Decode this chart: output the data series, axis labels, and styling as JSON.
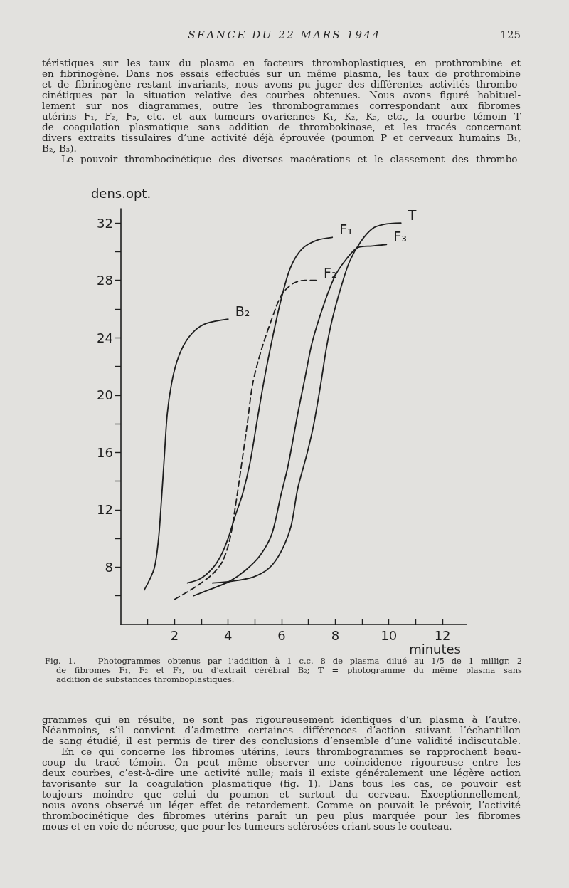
{
  "chart_data": {
    "type": "line",
    "xlabel": "minutes",
    "ylabel": "dens.opt.",
    "annotations": [
      "SEANCE DU 22 MARS 1944",
      "125",
      "téristiques sur les taux du plasma en facteurs thromboplastiques, en prothrombine et\nen fibrinogène. Dans nos essais effectués sur un même plasma, les taux de prothrombine\net de fibrinogène restant invariants, nous avons pu juger des différentes activités thrombo-\ncinétiques par la situation relative des courbes obtenues. Nous avons figuré habituel-\nlement sur nos diagrammes, outre les thrombogrammes correspondant aux fibromes\nutérins F₁, F₂, F₃, etc. et aux tumeurs ovariennes K₁, K₂, K₃, etc., la courbe témoin T\nde coagulation plasmatique sans addition de thrombokinase, et les tracés concernant\ndivers extraits tissulaires d’une activité déjà éprouvée (poumon P et cerveaux humains B₁,\nB₂, B₃).",
      "Le pouvoir thrombocinétique des diverses macérations et le classement des thrombo-",
      "Fig. 1. — Photogrammes obtenus par l’addition à 1 c.c. 8 de plasma dilué au 1/5 de 1 milligr. 2\nde fibromes F₁, F₂ et F₃, ou d’extrait cérébral B₂; T = photogramme du même plasma sans\naddition de substances thromboplastiques.",
      "grammes qui en résulte, ne sont pas rigoureusement identiques d’un plasma à l’autre.\nNéanmoins, s’il convient d’admettre certaines différences d’action suivant l’échantillon\nde sang étudié, il est permis de tirer des conclusions d’ensemble d’une validité indiscutable.",
      "En ce qui concerne les fibromes utérins, leurs thrombogrammes se rapprochent beau-\ncoup du tracé témoin. On peut même observer une coïncidence rigoureuse entre les\ndeux courbes, c’est-à-dire une activité nulle; mais il existe généralement une légère action\nfavorisante sur la coagulation plasmatique (fig. 1). Dans tous les cas, ce pouvoir est\ntoujours moindre que celui du poumon et surtout du cerveau. Exceptionnellement,\nnous avons observé un léger effet de retardement. Comme on pouvait le prévoir, l’activité\nthrombocinétique des fibromes utérins paraît un peu plus marquée pour les fibromes\nmous et en voie de nécrose, que pour les tumeurs sclérosées criant sous le couteau."
    ],
    "xlim": [
      0,
      12.9
    ],
    "ylim": [
      4,
      33
    ],
    "xticks": [
      {
        "value": 1,
        "label": null
      },
      2,
      {
        "value": 3,
        "label": null
      },
      4,
      {
        "value": 5,
        "label": null
      },
      6,
      {
        "value": 7,
        "label": null
      },
      8,
      {
        "value": 9,
        "label": null
      },
      10,
      {
        "value": 11,
        "label": null
      },
      12
    ],
    "yticks": [
      {
        "value": 6,
        "label": null
      },
      8,
      {
        "value": 10,
        "label": null
      },
      12,
      {
        "value": 14,
        "label": null
      },
      16,
      {
        "value": 18,
        "label": null
      },
      20,
      {
        "value": 22,
        "label": null
      },
      24,
      {
        "value": 26,
        "label": null
      },
      28,
      {
        "value": 30,
        "label": null
      },
      32
    ],
    "marker": "none",
    "line_style": "solid",
    "series": [
      {
        "name": "B₂",
        "color": "#1e1e1e",
        "x": [
          0.87,
          1.24,
          1.4,
          1.51,
          1.62,
          1.73,
          1.89,
          2.1,
          2.38,
          2.76,
          3.19,
          4.0
        ],
        "values": [
          6.4,
          7.9,
          9.9,
          12.6,
          15.7,
          18.7,
          20.8,
          22.4,
          23.6,
          24.5,
          25.0,
          25.3
        ]
      },
      {
        "name": "F₁",
        "color": "#1e1e1e",
        "x": [
          2.48,
          2.97,
          3.41,
          3.73,
          4.0,
          4.27,
          4.54,
          4.82,
          5.09,
          5.36,
          5.68,
          6.01,
          6.33,
          6.76,
          7.31,
          7.89
        ],
        "values": [
          6.9,
          7.2,
          7.9,
          8.8,
          10.0,
          11.6,
          13.1,
          15.3,
          18.3,
          21.2,
          24.2,
          26.9,
          28.9,
          30.2,
          30.8,
          31.0
        ]
      },
      {
        "name": "F₂",
        "color": "#1e1e1e",
        "line_style": "dashed",
        "x": [
          2.0,
          2.76,
          3.41,
          3.79,
          4.06,
          4.27,
          4.49,
          4.71,
          4.92,
          5.25,
          5.63,
          6.0,
          6.44,
          6.87,
          7.3
        ],
        "values": [
          5.75,
          6.6,
          7.5,
          8.4,
          9.9,
          12.2,
          15.0,
          17.9,
          20.8,
          23.2,
          25.3,
          27.0,
          27.8,
          28.0,
          28.0
        ]
      },
      {
        "name": "F₃",
        "color": "#1e1e1e",
        "x": [
          2.71,
          3.33,
          4.04,
          4.66,
          5.19,
          5.63,
          5.98,
          6.23,
          6.61,
          6.87,
          7.14,
          7.57,
          7.99,
          8.42,
          8.85,
          9.38,
          9.91
        ],
        "values": [
          6.0,
          6.45,
          7.0,
          7.8,
          8.8,
          10.3,
          13.1,
          15.0,
          18.8,
          21.2,
          23.7,
          26.3,
          28.3,
          29.5,
          30.3,
          30.4,
          30.5
        ]
      },
      {
        "name": "T",
        "color": "#1e1e1e",
        "x": [
          3.42,
          4.04,
          4.92,
          5.54,
          5.98,
          6.34,
          6.6,
          6.93,
          7.19,
          7.46,
          7.67,
          7.89,
          8.21,
          8.53,
          8.95,
          9.38,
          9.81,
          10.45
        ],
        "values": [
          6.9,
          7.0,
          7.3,
          7.95,
          9.1,
          10.8,
          13.5,
          15.8,
          17.9,
          20.8,
          23.3,
          25.3,
          27.5,
          29.3,
          30.7,
          31.6,
          31.9,
          32.0
        ]
      }
    ]
  }
}
